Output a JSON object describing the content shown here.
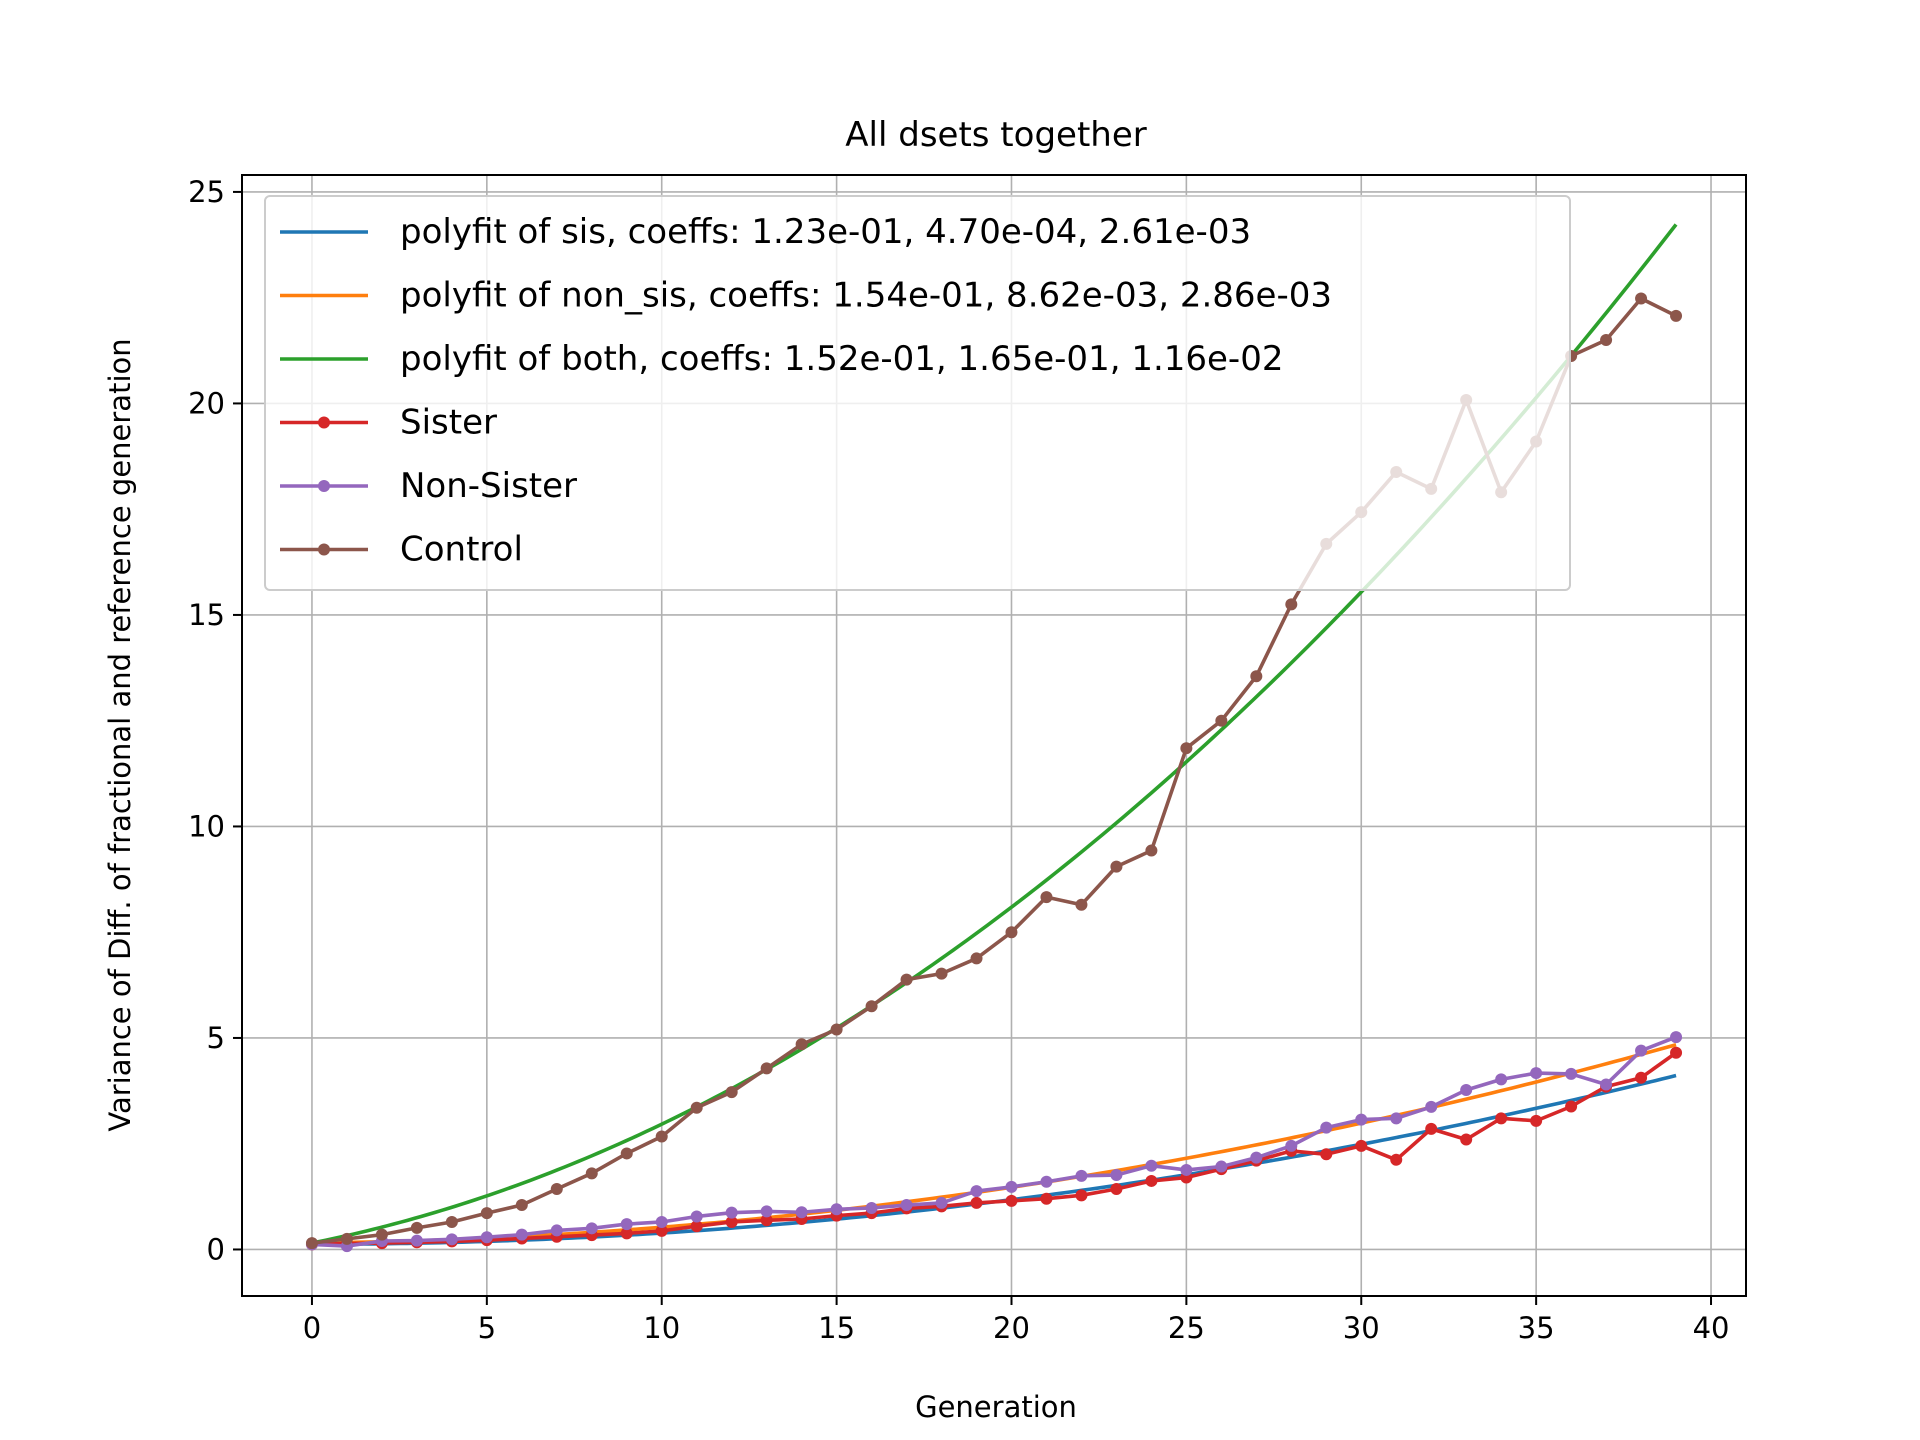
{
  "chart_data": {
    "type": "line",
    "title": "All dsets together",
    "xlabel": "Generation",
    "ylabel": "Variance of Diff. of fractional and reference generation",
    "xlim": [
      -2,
      41
    ],
    "ylim": [
      -1.1,
      25.4
    ],
    "xticks": [
      0,
      5,
      10,
      15,
      20,
      25,
      30,
      35,
      40
    ],
    "yticks": [
      0,
      5,
      10,
      15,
      20,
      25
    ],
    "grid": true,
    "legend_position": "top-left",
    "fits": [
      {
        "name": "polyfit of sis, coeffs: 1.23e-01, 4.70e-04, 2.61e-03",
        "coeffs": [
          0.123,
          0.00047,
          0.00261
        ],
        "color": "#1f77b4",
        "x_range": [
          0,
          39
        ]
      },
      {
        "name": "polyfit of non_sis, coeffs: 1.54e-01, 8.62e-03, 2.86e-03",
        "coeffs": [
          0.154,
          0.00862,
          0.00286
        ],
        "color": "#ff7f0e",
        "x_range": [
          0,
          39
        ]
      },
      {
        "name": "polyfit of both, coeffs: 1.52e-01, 1.65e-01, 1.16e-02",
        "coeffs": [
          0.152,
          0.165,
          0.0116
        ],
        "color": "#2ca02c",
        "x_range": [
          0,
          39
        ]
      }
    ],
    "x": [
      0,
      1,
      2,
      3,
      4,
      5,
      6,
      7,
      8,
      9,
      10,
      11,
      12,
      13,
      14,
      15,
      16,
      17,
      18,
      19,
      20,
      21,
      22,
      23,
      24,
      25,
      26,
      27,
      28,
      29,
      30,
      31,
      32,
      33,
      34,
      35,
      36,
      37,
      38,
      39
    ],
    "series": [
      {
        "name": "Sister",
        "color": "#d62728",
        "values": [
          0.12,
          0.14,
          0.15,
          0.17,
          0.19,
          0.22,
          0.26,
          0.3,
          0.34,
          0.38,
          0.44,
          0.55,
          0.65,
          0.69,
          0.72,
          0.8,
          0.86,
          0.97,
          1.02,
          1.1,
          1.15,
          1.2,
          1.28,
          1.43,
          1.62,
          1.7,
          1.9,
          2.1,
          2.33,
          2.25,
          2.45,
          2.12,
          2.85,
          2.6,
          3.1,
          3.04,
          3.38,
          3.85,
          4.06,
          4.65
        ]
      },
      {
        "name": "Non-Sister",
        "color": "#9467bd",
        "values": [
          0.12,
          0.08,
          0.2,
          0.21,
          0.24,
          0.29,
          0.35,
          0.45,
          0.5,
          0.6,
          0.65,
          0.78,
          0.87,
          0.9,
          0.88,
          0.95,
          0.98,
          1.05,
          1.1,
          1.38,
          1.48,
          1.6,
          1.74,
          1.76,
          1.98,
          1.88,
          1.96,
          2.17,
          2.45,
          2.88,
          3.07,
          3.1,
          3.37,
          3.77,
          4.02,
          4.17,
          4.15,
          3.9,
          4.7,
          5.02
        ]
      },
      {
        "name": "Control",
        "color": "#8c564b",
        "values": [
          0.15,
          0.25,
          0.35,
          0.51,
          0.65,
          0.86,
          1.05,
          1.43,
          1.8,
          2.27,
          2.67,
          3.35,
          3.72,
          4.28,
          4.85,
          5.2,
          5.75,
          6.38,
          6.52,
          6.88,
          7.5,
          8.33,
          8.15,
          9.05,
          9.43,
          11.85,
          12.5,
          13.55,
          15.25,
          16.68,
          17.43,
          18.38,
          17.98,
          20.08,
          17.9,
          19.1,
          21.12,
          21.5,
          22.48,
          22.07
        ]
      }
    ]
  }
}
